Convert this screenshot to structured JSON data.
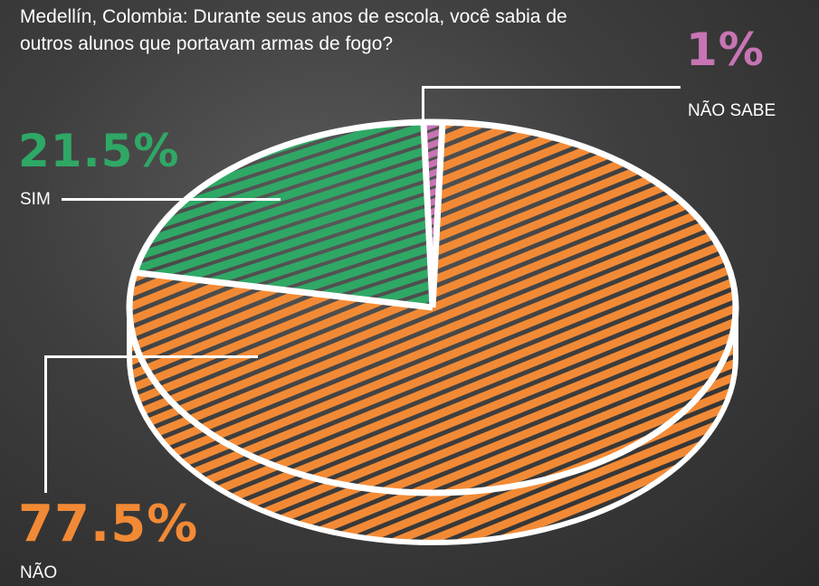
{
  "title": "Medellín, Colombia: Durante seus anos de escola, você sabia de outros alunos que portavam armas de fogo?",
  "colors": {
    "background": "#3e3e3e",
    "sim": "#2fa865",
    "nao": "#f28a35",
    "nao_sabe": "#c774b4",
    "outline": "#ffffff"
  },
  "chart_data": {
    "type": "pie",
    "title": "Medellín, Colombia: Durante seus anos de escola, você sabia de outros alunos que portavam armas de fogo?",
    "slices": [
      {
        "label": "SIM",
        "value": 21.5,
        "display": "21.5%",
        "color": "#2fa865"
      },
      {
        "label": "NÃO",
        "value": 77.5,
        "display": "77.5%",
        "color": "#f28a35"
      },
      {
        "label": "NÃO SABE",
        "value": 1,
        "display": "1%",
        "color": "#c774b4"
      }
    ]
  }
}
